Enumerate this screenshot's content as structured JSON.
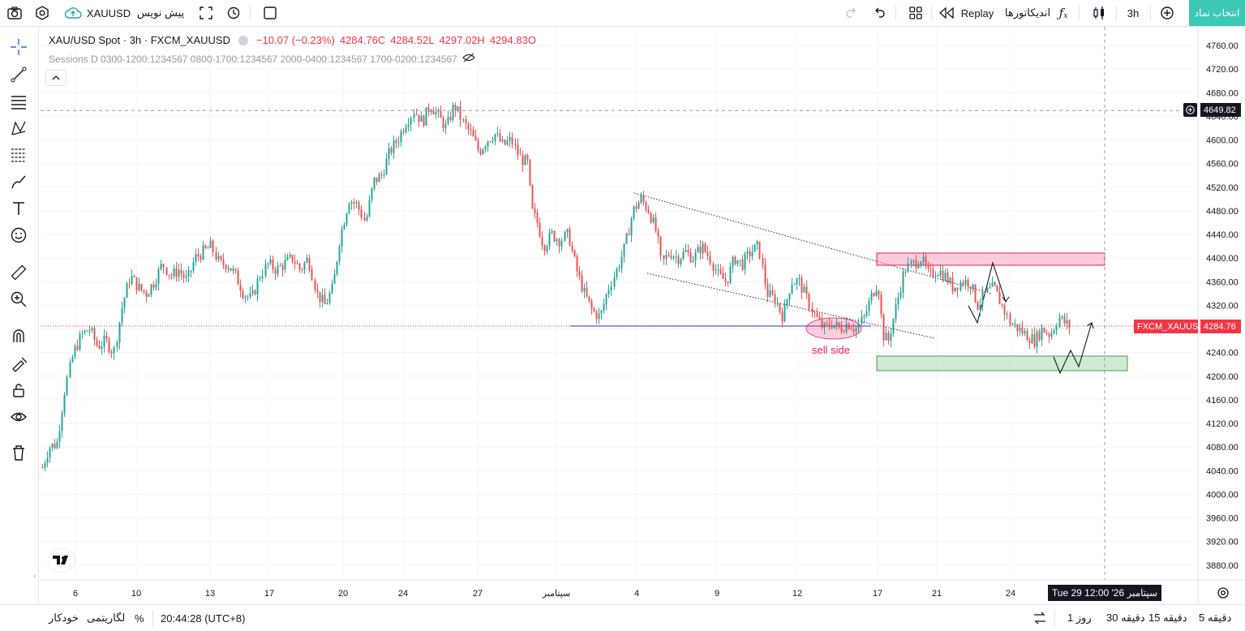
{
  "topbar": {
    "symbol": "XAUUSD",
    "pine_label": "پیش نویس",
    "replay_label": "Replay",
    "indicators_label": "اندیکاتورها",
    "interval_label": "3h",
    "select_symbol_label": "انتخاب نماد"
  },
  "legend": {
    "title": "XAU/USD Spot · 3h · FXCM_XAUUSD",
    "change": "−10.07 (−0.23%)",
    "close": "4284.76C",
    "low": "4284.52L",
    "high": "4297.02H",
    "open": "4294.83O",
    "sessions": "Sessions D 0300-1200:1234567 0800-1700:1234567 2000-0400:1234567 1700-0200:1234567"
  },
  "price_axis": {
    "ticks": [
      "4760.00",
      "4720.00",
      "4680.00",
      "4640.00",
      "4600.00",
      "4560.00",
      "4520.00",
      "4480.00",
      "4440.00",
      "4400.00",
      "4360.00",
      "4320.00",
      "4280.00",
      "4240.00",
      "4200.00",
      "4160.00",
      "4120.00",
      "4080.00",
      "4040.00",
      "4000.00",
      "3960.00",
      "3920.00",
      "3880.00"
    ],
    "crosshair_price": "4649.82",
    "last_price": "4284.76",
    "last_price_label": "FXCM_XAUUSD"
  },
  "time_axis": {
    "ticks": [
      "6",
      "10",
      "13",
      "17",
      "20",
      "24",
      "27",
      "سپتامبر",
      "4",
      "9",
      "12",
      "17",
      "21",
      "24"
    ],
    "crosshair_time": "Tue 29 12:00 '26 سپتامبر"
  },
  "annotations": {
    "sell_side": "sell side"
  },
  "bottombar": {
    "ranges": [
      "5 دقیقه",
      "15 دقیقه",
      "30 دقیقه",
      "1 روز"
    ],
    "time": "20:44:28 (UTC+8)",
    "percent": "%",
    "log": "لگاریتمی",
    "auto": "خودکار"
  },
  "colors": {
    "up": "#26a69a",
    "down": "#ef5350",
    "accent": "#3dc8b5",
    "last_price": "#f23645",
    "support_line": "#2962ff",
    "resistance_zone": "#f48fb1",
    "demand_zone": "#a5d6a7"
  }
}
